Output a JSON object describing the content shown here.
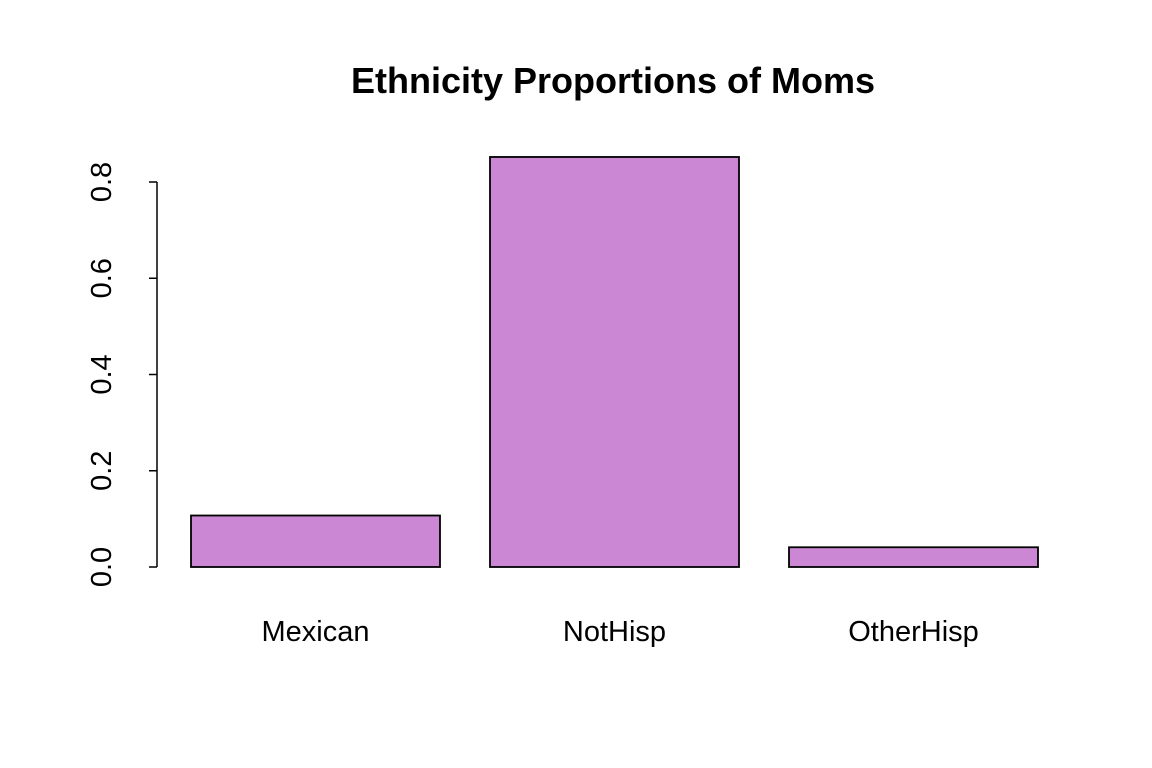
{
  "chart_data": {
    "type": "bar",
    "title": "Ethnicity Proportions of Moms",
    "xlabel": "",
    "ylabel": "",
    "categories": [
      "Mexican",
      "NotHisp",
      "OtherHisp"
    ],
    "values": [
      0.107,
      0.852,
      0.041
    ],
    "ylim": [
      0,
      0.8
    ],
    "yticks": [
      0.0,
      0.2,
      0.4,
      0.6,
      0.8
    ],
    "ytick_labels": [
      "0.0",
      "0.2",
      "0.4",
      "0.6",
      "0.8"
    ],
    "bar_color": "#CB87D4",
    "grid": false,
    "legend": "none"
  }
}
